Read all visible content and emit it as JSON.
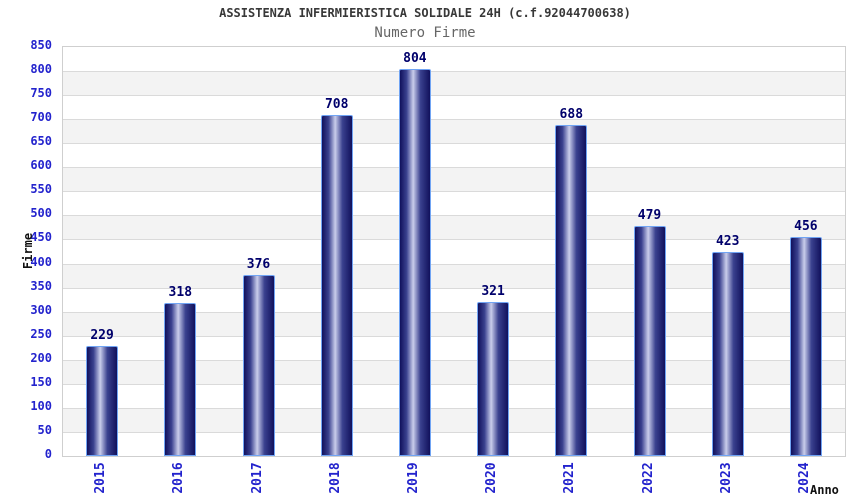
{
  "chart_data": {
    "type": "bar",
    "title": "ASSISTENZA INFERMIERISTICA SOLIDALE 24H (c.f.92044700638)",
    "subtitle": "Numero Firme",
    "xlabel": "Anno",
    "ylabel": "Firme",
    "categories": [
      "2015",
      "2016",
      "2017",
      "2018",
      "2019",
      "2020",
      "2021",
      "2022",
      "2023",
      "2024"
    ],
    "values": [
      229,
      318,
      376,
      708,
      804,
      321,
      688,
      479,
      423,
      456
    ],
    "ylim": [
      0,
      850
    ],
    "ytick_step": 50,
    "yticks": [
      0,
      50,
      100,
      150,
      200,
      250,
      300,
      350,
      400,
      450,
      500,
      550,
      600,
      650,
      700,
      750,
      800,
      850
    ],
    "bar_value_labels_shown": true,
    "legend": "none",
    "grid": "horizontal gridlines every 50 units with alternating white and light-gray bands"
  },
  "colors": {
    "tick_label_blue": "#2323cd",
    "value_label_navy": "#00006b",
    "title_color": "#383838",
    "subtitle_color": "#666666",
    "axis_title_color": "#111111",
    "bar_dark": "#11115c",
    "bar_mid": "#3a418f",
    "bar_light": "#c9cdeb",
    "bar_border": "#70a4f4",
    "band_gray": "#f3f3f3",
    "gridline": "#dadada",
    "plot_border": "#cfcfcf"
  }
}
